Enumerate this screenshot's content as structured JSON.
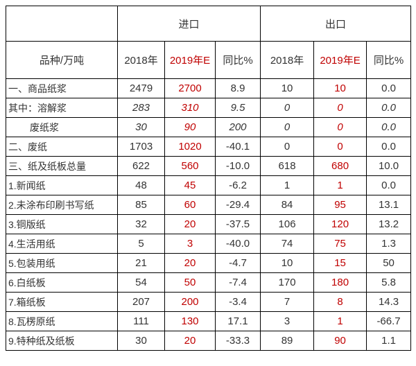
{
  "colors": {
    "text": "#333333",
    "estimate_red": "#c00000",
    "border": "#000000",
    "background": "#ffffff"
  },
  "table": {
    "unit_header": "品种/万吨",
    "groups": [
      {
        "label": "进口"
      },
      {
        "label": "出口"
      }
    ],
    "sub_columns": [
      "2018年",
      "2019年E",
      "同比%",
      "2018年",
      "2019年E",
      "同比%"
    ],
    "red_column_indexes": [
      1,
      4
    ],
    "rows": [
      {
        "label": "一、商品纸浆",
        "values": [
          "2479",
          "2700",
          "8.9",
          "10",
          "10",
          "0.0"
        ],
        "italic": false,
        "indent": false
      },
      {
        "label": "其中：溶解浆",
        "values": [
          "283",
          "310",
          "9.5",
          "0",
          "0",
          "0.0"
        ],
        "italic": true,
        "indent": false
      },
      {
        "label": "废纸浆",
        "values": [
          "30",
          "90",
          "200",
          "0",
          "0",
          "0.0"
        ],
        "italic": true,
        "indent": true
      },
      {
        "label": "二、废纸",
        "values": [
          "1703",
          "1020",
          "-40.1",
          "0",
          "0",
          "0.0"
        ],
        "italic": false,
        "indent": false
      },
      {
        "label": "三、纸及纸板总量",
        "values": [
          "622",
          "560",
          "-10.0",
          "618",
          "680",
          "10.0"
        ],
        "italic": false,
        "indent": false
      },
      {
        "label": "1.新闻纸",
        "values": [
          "48",
          "45",
          "-6.2",
          "1",
          "1",
          "0.0"
        ],
        "italic": false,
        "indent": false
      },
      {
        "label": "2.未涂布印刷书写纸",
        "values": [
          "85",
          "60",
          "-29.4",
          "84",
          "95",
          "13.1"
        ],
        "italic": false,
        "indent": false
      },
      {
        "label": "3.铜版纸",
        "values": [
          "32",
          "20",
          "-37.5",
          "106",
          "120",
          "13.2"
        ],
        "italic": false,
        "indent": false
      },
      {
        "label": "4.生活用纸",
        "values": [
          "5",
          "3",
          "-40.0",
          "74",
          "75",
          "1.3"
        ],
        "italic": false,
        "indent": false
      },
      {
        "label": "5.包装用纸",
        "values": [
          "21",
          "20",
          "-4.7",
          "10",
          "15",
          "50"
        ],
        "italic": false,
        "indent": false
      },
      {
        "label": "6.白纸板",
        "values": [
          "54",
          "50",
          "-7.4",
          "170",
          "180",
          "5.8"
        ],
        "italic": false,
        "indent": false
      },
      {
        "label": "7.箱纸板",
        "values": [
          "207",
          "200",
          "-3.4",
          "7",
          "8",
          "14.3"
        ],
        "italic": false,
        "indent": false
      },
      {
        "label": "8.瓦楞原纸",
        "values": [
          "111",
          "130",
          "17.1",
          "3",
          "1",
          "-66.7"
        ],
        "italic": false,
        "indent": false
      },
      {
        "label": "9.特种纸及纸板",
        "values": [
          "30",
          "20",
          "-33.3",
          "89",
          "90",
          "1.1"
        ],
        "italic": false,
        "indent": false
      }
    ]
  }
}
